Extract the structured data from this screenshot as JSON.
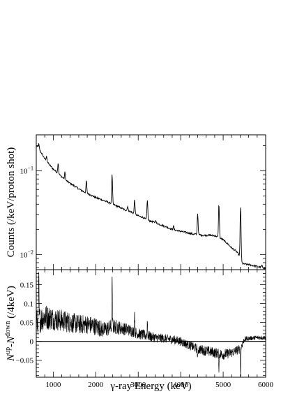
{
  "chart_data": [
    {
      "type": "line",
      "panel": "top",
      "ylabel": "Counts (/keV/proton shot)",
      "xlim": [
        600,
        6000
      ],
      "ylim": [
        0.0066,
        0.27
      ],
      "yscale": "log",
      "y_ticks": [
        {
          "value": 0.1,
          "label": "10",
          "exp": "−1"
        },
        {
          "value": 0.01,
          "label": "10",
          "exp": "−2"
        }
      ],
      "grid": false,
      "series": [
        {
          "style": "line",
          "x": [
            600,
            650,
            700,
            800,
            900,
            1000,
            1100,
            1200,
            1300,
            1400,
            1500,
            1600,
            1700,
            1800,
            1900,
            2000,
            2100,
            2200,
            2300,
            2400,
            2500,
            2600,
            2700,
            2800,
            2900,
            3000,
            3100,
            3200,
            3300,
            3400,
            3500,
            3600,
            3700,
            3800,
            3900,
            4000,
            4100,
            4200,
            4300,
            4400,
            4500,
            4600,
            4700,
            4800,
            4900,
            5000,
            5100,
            5200,
            5300,
            5400,
            5450,
            5500,
            5600,
            5700,
            5800,
            5900,
            6000
          ],
          "y": [
            0.2,
            0.19,
            0.17,
            0.14,
            0.12,
            0.105,
            0.095,
            0.085,
            0.077,
            0.071,
            0.066,
            0.061,
            0.057,
            0.054,
            0.051,
            0.048,
            0.046,
            0.044,
            0.042,
            0.04,
            0.038,
            0.036,
            0.034,
            0.033,
            0.031,
            0.029,
            0.028,
            0.026,
            0.025,
            0.024,
            0.023,
            0.022,
            0.021,
            0.02,
            0.0195,
            0.019,
            0.0185,
            0.018,
            0.0175,
            0.0175,
            0.017,
            0.017,
            0.017,
            0.0168,
            0.016,
            0.015,
            0.0135,
            0.012,
            0.011,
            0.0095,
            0.0078,
            0.0077,
            0.0076,
            0.0074,
            0.0072,
            0.007,
            0.0068
          ]
        },
        {
          "style": "peaks",
          "energies": [
            660,
            845,
            1115,
            1275,
            1780,
            2385,
            2750,
            2915,
            3215,
            3410,
            3830,
            4400,
            4900,
            5410,
            5910
          ],
          "heights": [
            0.21,
            0.15,
            0.125,
            0.097,
            0.077,
            0.09,
            0.038,
            0.046,
            0.045,
            0.026,
            0.022,
            0.031,
            0.04,
            0.037,
            0.0075
          ]
        }
      ]
    },
    {
      "type": "line",
      "panel": "bottom",
      "xlabel": "γ-ray Energy (keV)",
      "ylabel": {
        "n": "N",
        "up": "up",
        "dash": "-N",
        "down": "down",
        "unit": " (/4keV)"
      },
      "xlim": [
        600,
        6000
      ],
      "ylim": [
        -0.095,
        0.19
      ],
      "x_ticks": [
        1000,
        2000,
        3000,
        4000,
        5000,
        6000
      ],
      "y_ticks": [
        -0.05,
        0,
        0.05,
        0.1,
        0.15
      ],
      "y_tick_labels": [
        "−0.05",
        "0",
        "0.05",
        "0.1",
        "0.15"
      ],
      "reference_line": 0,
      "grid": false,
      "series": [
        {
          "style": "noisy-line",
          "x": [
            600,
            800,
            1000,
            1200,
            1400,
            1600,
            1800,
            2000,
            2200,
            2400,
            2600,
            2800,
            3000,
            3200,
            3400,
            3600,
            3800,
            4000,
            4200,
            4400,
            4600,
            4800,
            5000,
            5200,
            5400,
            5500,
            5600,
            5800,
            6000
          ],
          "y": [
            0.05,
            0.065,
            0.06,
            0.055,
            0.05,
            0.045,
            0.045,
            0.04,
            0.03,
            0.04,
            0.035,
            0.03,
            0.02,
            0.015,
            0.01,
            0.008,
            0.005,
            0.0,
            -0.01,
            -0.02,
            -0.025,
            -0.03,
            -0.035,
            -0.03,
            -0.02,
            0.005,
            0.008,
            0.01,
            0.01
          ],
          "noise": [
            0.035,
            0.035,
            0.03,
            0.03,
            0.028,
            0.026,
            0.025,
            0.024,
            0.022,
            0.02,
            0.018,
            0.016,
            0.015,
            0.014,
            0.013,
            0.012,
            0.012,
            0.012,
            0.012,
            0.013,
            0.014,
            0.014,
            0.014,
            0.013,
            0.012,
            0.008,
            0.006,
            0.006,
            0.006
          ]
        },
        {
          "style": "peaks",
          "energies": [
            660,
            2385,
            2915,
            3215,
            4400,
            4900,
            5410
          ],
          "heights": [
            0.16,
            0.17,
            0.08,
            0.055,
            -0.05,
            -0.07,
            -0.085
          ]
        }
      ]
    }
  ]
}
